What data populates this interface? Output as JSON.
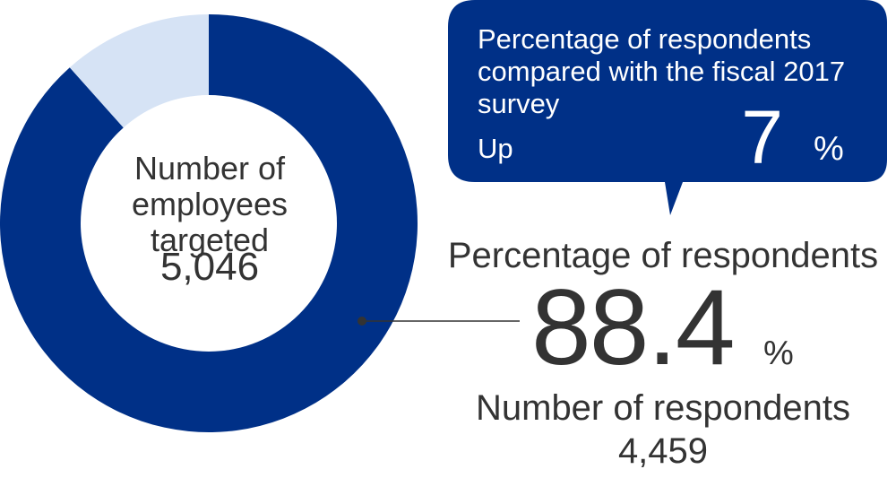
{
  "chart_data": {
    "type": "pie",
    "variant": "donut",
    "slices": [
      {
        "value": 88.4,
        "color": "#003087"
      },
      {
        "value": 11.6,
        "color": "#d6e3f5"
      }
    ],
    "center": {
      "label": "Number of employees targeted",
      "value": "5,046"
    }
  },
  "callout": {
    "label": "Percentage of respondents compared with the fiscal 2017 survey",
    "direction": "Up",
    "value": "7",
    "unit": "%",
    "color": "#003087"
  },
  "summary": {
    "percentage_label": "Percentage of respondents",
    "percentage_value": "88.4",
    "percentage_unit": "%",
    "respondents_label": "Number of respondents",
    "respondents_value": "4,459"
  }
}
